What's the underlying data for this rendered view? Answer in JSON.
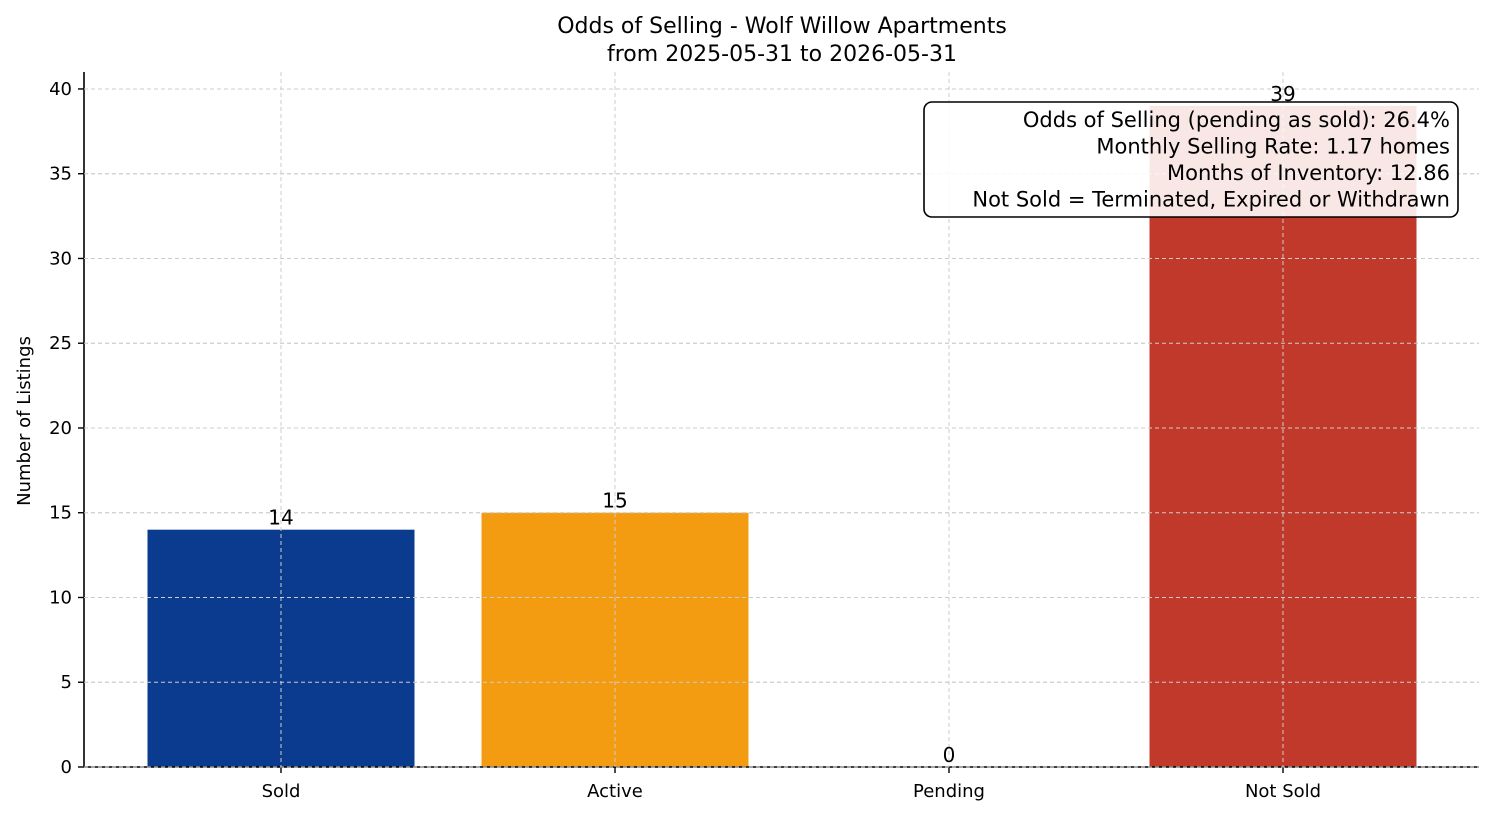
{
  "chart_data": {
    "type": "bar",
    "title": "Odds of Selling - Wolf Willow Apartments",
    "subtitle": "from 2025-05-31 to 2026-05-31",
    "xlabel": "",
    "ylabel": "Number of Listings",
    "categories": [
      "Sold",
      "Active",
      "Pending",
      "Not Sold"
    ],
    "values": [
      14,
      15,
      0,
      39
    ],
    "colors": [
      "#0b3b8f",
      "#f39c12",
      "#27ae60",
      "#c0392b"
    ],
    "data_labels": [
      "14",
      "15",
      "0",
      "39"
    ],
    "ylim": [
      0,
      41
    ],
    "yticks": [
      0,
      5,
      10,
      15,
      20,
      25,
      30,
      35,
      40
    ],
    "grid": true,
    "info_box": {
      "placement": "top-right",
      "lines": [
        "Odds of Selling (pending as sold): 26.4%",
        "Monthly Selling Rate: 1.17 homes",
        "Months of Inventory: 12.86",
        "Not Sold = Terminated, Expired or Withdrawn"
      ]
    }
  }
}
